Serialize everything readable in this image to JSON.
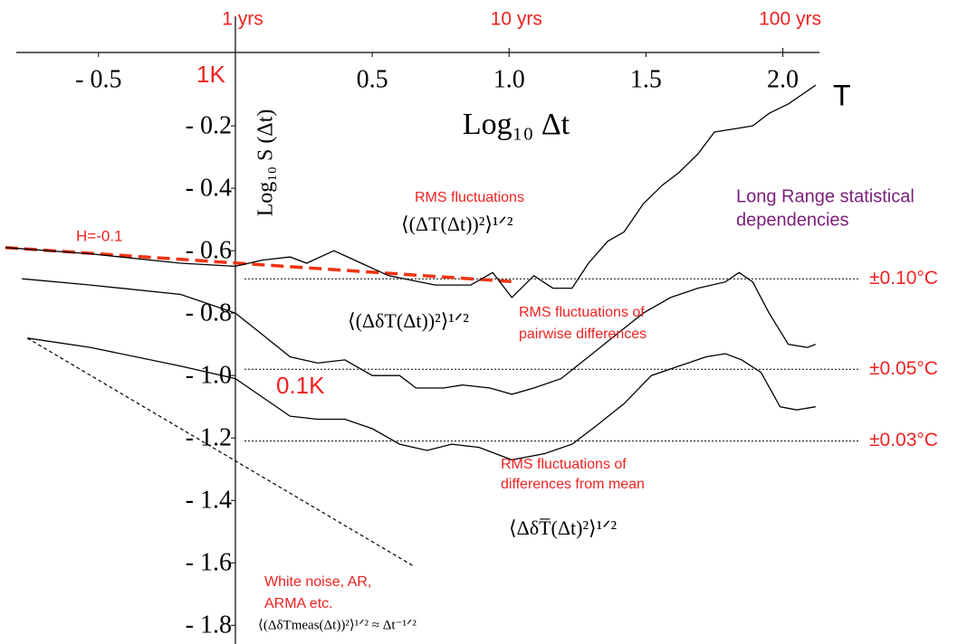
{
  "chart_data": {
    "type": "line",
    "xlabel": "Log₁₀ Δt",
    "ylabel": "Log₁₀ S (Δt)",
    "xlim": [
      -0.86,
      2.64
    ],
    "ylim": [
      -1.86,
      0.035
    ],
    "xticks": [
      {
        "value": -0.5,
        "label": "- 0.5"
      },
      0.5,
      {
        "value": 1,
        "label": "1.0"
      },
      1.5,
      {
        "value": 2,
        "label": "2.0"
      }
    ],
    "x2ticks": [
      {
        "value": 0,
        "label": "1 yrs"
      },
      {
        "value": 1,
        "label": "10 yrs"
      },
      {
        "value": 2,
        "label": "100 yrs"
      }
    ],
    "yticks": [
      {
        "value": -0.2,
        "label": "- 0.2"
      },
      {
        "value": -0.4,
        "label": "- 0.4"
      },
      {
        "value": -0.6,
        "label": "- 0.6"
      },
      {
        "value": -0.8,
        "label": "- 0.8"
      },
      {
        "value": -1.0,
        "label": "- 1.0"
      },
      {
        "value": -1.2,
        "label": "- 1.2"
      },
      {
        "value": -1.4,
        "label": "- 1.4"
      },
      {
        "value": -1.6,
        "label": "- 1.6"
      },
      {
        "value": -1.8,
        "label": "- 1.8"
      }
    ],
    "series": [
      {
        "color": "#000000",
        "x": [
          -0.84,
          -0.53,
          -0.2,
          0,
          0.1,
          0.2,
          0.26,
          0.36,
          0.46,
          0.56,
          0.73,
          0.86,
          0.94,
          1.01,
          1.09,
          1.16,
          1.23,
          1.29,
          1.36,
          1.42,
          1.49,
          1.56,
          1.62,
          1.69,
          1.75,
          1.82,
          1.89,
          1.95,
          2.02,
          2.12
        ],
        "values": [
          -0.59,
          -0.61,
          -0.64,
          -0.65,
          -0.63,
          -0.62,
          -0.64,
          -0.6,
          -0.64,
          -0.68,
          -0.71,
          -0.71,
          -0.67,
          -0.75,
          -0.68,
          -0.72,
          -0.72,
          -0.64,
          -0.57,
          -0.54,
          -0.45,
          -0.39,
          -0.35,
          -0.29,
          -0.22,
          -0.21,
          -0.2,
          -0.16,
          -0.13,
          -0.07
        ]
      },
      {
        "color": "#000000",
        "x": [
          -0.78,
          -0.53,
          -0.2,
          0,
          0.1,
          0.2,
          0.3,
          0.4,
          0.5,
          0.6,
          0.66,
          0.76,
          0.83,
          0.93,
          1.01,
          1.09,
          1.19,
          1.29,
          1.39,
          1.49,
          1.59,
          1.69,
          1.79,
          1.84,
          1.89,
          1.95,
          2.02,
          2.09,
          2.12
        ],
        "values": [
          -0.69,
          -0.71,
          -0.74,
          -0.8,
          -0.87,
          -0.94,
          -0.96,
          -0.95,
          -1.0,
          -1.0,
          -1.04,
          -1.04,
          -1.03,
          -1.04,
          -1.06,
          -1.04,
          -1.01,
          -0.94,
          -0.87,
          -0.8,
          -0.75,
          -0.72,
          -0.7,
          -0.67,
          -0.7,
          -0.8,
          -0.9,
          -0.91,
          -0.9
        ]
      },
      {
        "color": "#000000",
        "x": [
          -0.76,
          -0.53,
          -0.2,
          0,
          0.1,
          0.2,
          0.3,
          0.4,
          0.5,
          0.6,
          0.7,
          0.79,
          0.89,
          1.01,
          1.13,
          1.23,
          1.32,
          1.42,
          1.52,
          1.62,
          1.72,
          1.79,
          1.85,
          1.92,
          1.99,
          2.05,
          2.12
        ],
        "values": [
          -0.88,
          -0.91,
          -0.97,
          -1.01,
          -1.07,
          -1.13,
          -1.14,
          -1.14,
          -1.17,
          -1.22,
          -1.24,
          -1.22,
          -1.23,
          -1.27,
          -1.25,
          -1.22,
          -1.16,
          -1.09,
          -1.0,
          -0.97,
          -0.94,
          -0.93,
          -0.95,
          -0.99,
          -1.1,
          -1.11,
          -1.1
        ]
      }
    ],
    "reference_lines": [
      {
        "color": "#ee3311",
        "dash": "14 7",
        "width": 3.5,
        "x": [
          -0.84,
          1.03
        ],
        "values": [
          -0.59,
          -0.7
        ]
      },
      {
        "color": "#000000",
        "dash": "4 3",
        "width": 1.2,
        "x": [
          -0.76,
          0.65
        ],
        "values": [
          -0.88,
          -1.61
        ]
      }
    ],
    "hlines": [
      {
        "value": -0.69,
        "label": "±0.10°C"
      },
      {
        "value": -0.98,
        "label": "±0.05°C"
      },
      {
        "value": -1.21,
        "label": "±0.03°C"
      }
    ],
    "annotations": [
      {
        "text": "1K",
        "color": "#ee2222"
      },
      {
        "text": "0.1K",
        "color": "#ee2222"
      },
      {
        "text": "H=-0.1",
        "color": "#ee2222"
      },
      {
        "text": "RMS fluctuations",
        "color": "#ee2222"
      },
      {
        "text": "RMS fluctuations of",
        "color": "#ee2222"
      },
      {
        "text": "pairwise differences",
        "color": "#ee2222"
      },
      {
        "text": "RMS fluctuations of",
        "color": "#ee2222"
      },
      {
        "text": "differences from mean",
        "color": "#ee2222"
      },
      {
        "text": "White noise, AR,",
        "color": "#ee2222"
      },
      {
        "text": "ARMA etc.",
        "color": "#ee2222"
      },
      {
        "text": "Long Range statistical",
        "color": "#7a1f7a"
      },
      {
        "text": "dependencies",
        "color": "#7a1f7a"
      },
      {
        "text": "T",
        "color": "#000000"
      },
      {
        "text": "⟨(ΔT(Δt))²⟩¹ᐟ²",
        "color": "#000000"
      },
      {
        "text": "⟨(ΔδT(Δt))²⟩¹ᐟ²",
        "color": "#000000"
      },
      {
        "text": "⟨ΔδT̅(Δt)²⟩¹ᐟ²",
        "color": "#000000"
      },
      {
        "text": "⟨(ΔδTmeas(Δt))²⟩¹ᐟ² ≈ Δt⁻¹ᐟ²",
        "color": "#000000"
      }
    ]
  }
}
